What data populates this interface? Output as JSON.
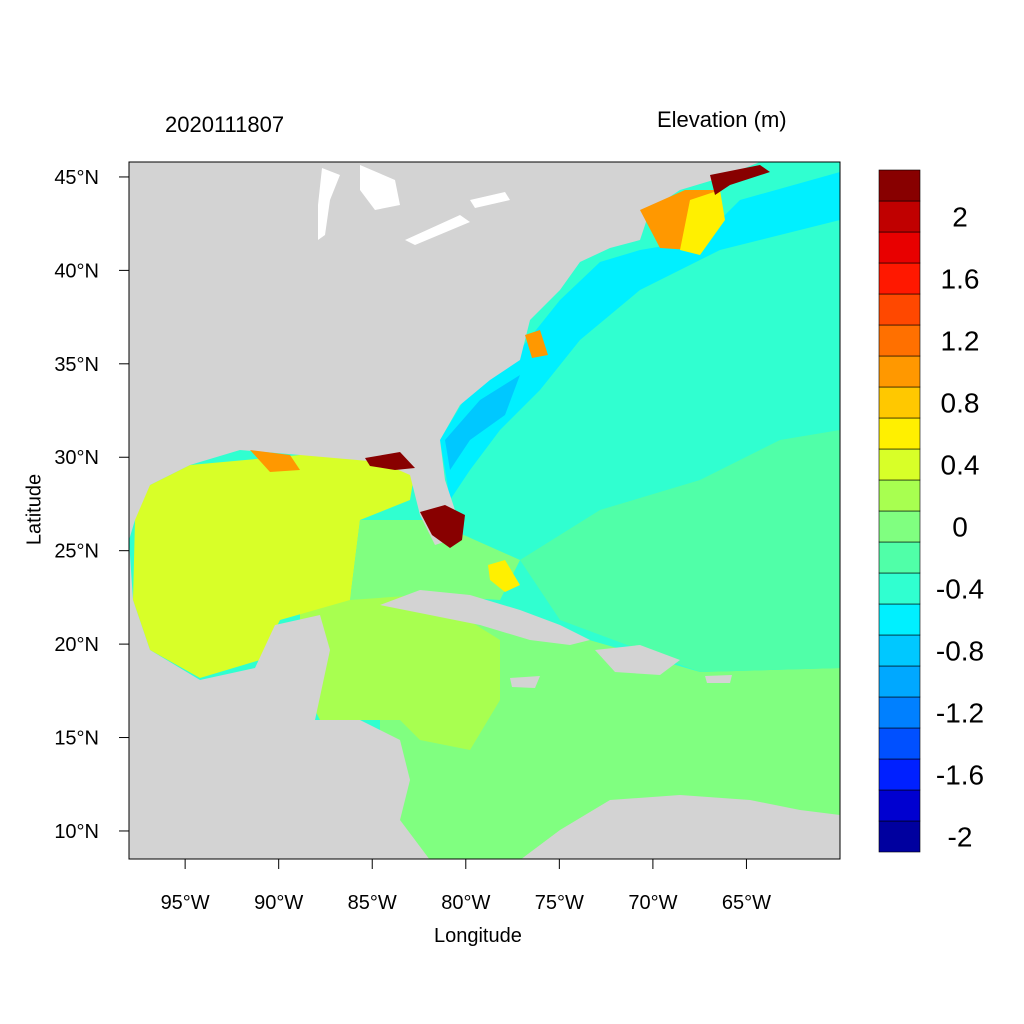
{
  "header": {
    "date_label": "2020111807",
    "variable_label": "Elevation (m)"
  },
  "axes": {
    "x_title": "Longitude",
    "y_title": "Latitude",
    "x_ticks": [
      {
        "value": -95,
        "label": "95°W"
      },
      {
        "value": -90,
        "label": "90°W"
      },
      {
        "value": -85,
        "label": "85°W"
      },
      {
        "value": -80,
        "label": "80°W"
      },
      {
        "value": -75,
        "label": "75°W"
      },
      {
        "value": -70,
        "label": "70°W"
      },
      {
        "value": -65,
        "label": "65°W"
      }
    ],
    "y_ticks": [
      {
        "value": 10,
        "label": "10°N"
      },
      {
        "value": 15,
        "label": "15°N"
      },
      {
        "value": 20,
        "label": "20°N"
      },
      {
        "value": 25,
        "label": "25°N"
      },
      {
        "value": 30,
        "label": "30°N"
      },
      {
        "value": 35,
        "label": "35°N"
      },
      {
        "value": 40,
        "label": "40°N"
      },
      {
        "value": 45,
        "label": "45°N"
      }
    ],
    "lon_range": [
      -98.0,
      -60.0
    ],
    "lat_range": [
      8.5,
      45.8
    ]
  },
  "colorbar": {
    "bins": [
      {
        "color": "#00009f",
        "label": "-2"
      },
      {
        "color": "#0000d0",
        "label": ""
      },
      {
        "color": "#0020ff",
        "label": "-1.6"
      },
      {
        "color": "#0050ff",
        "label": ""
      },
      {
        "color": "#0080ff",
        "label": "-1.2"
      },
      {
        "color": "#00a8ff",
        "label": ""
      },
      {
        "color": "#00c8ff",
        "label": "-0.8"
      },
      {
        "color": "#00f0ff",
        "label": ""
      },
      {
        "color": "#30ffd0",
        "label": "-0.4"
      },
      {
        "color": "#50ffa8",
        "label": ""
      },
      {
        "color": "#80ff80",
        "label": "0"
      },
      {
        "color": "#a8ff50",
        "label": ""
      },
      {
        "color": "#d8ff28",
        "label": "0.4"
      },
      {
        "color": "#fff000",
        "label": ""
      },
      {
        "color": "#ffc800",
        "label": "0.8"
      },
      {
        "color": "#ff9800",
        "label": ""
      },
      {
        "color": "#ff7000",
        "label": "1.2"
      },
      {
        "color": "#ff4800",
        "label": ""
      },
      {
        "color": "#ff1800",
        "label": "1.6"
      },
      {
        "color": "#e80000",
        "label": ""
      },
      {
        "color": "#c00000",
        "label": "2"
      },
      {
        "color": "#880000",
        "label": ""
      }
    ]
  },
  "map_colors": {
    "land": "#d3d3d3",
    "gulf_of_mexico": "#d8ff28",
    "caribbean_west": "#a8ff50",
    "caribbean_east": "#80ff80",
    "atlantic_mid": "#50ffa8",
    "atlantic_north": "#30ffd0",
    "shelf_low": "#00f0ff",
    "shelf_lower": "#00c8ff",
    "surge_high": "#880000",
    "surge_med": "#ff9800",
    "surge_low": "#fff000"
  }
}
